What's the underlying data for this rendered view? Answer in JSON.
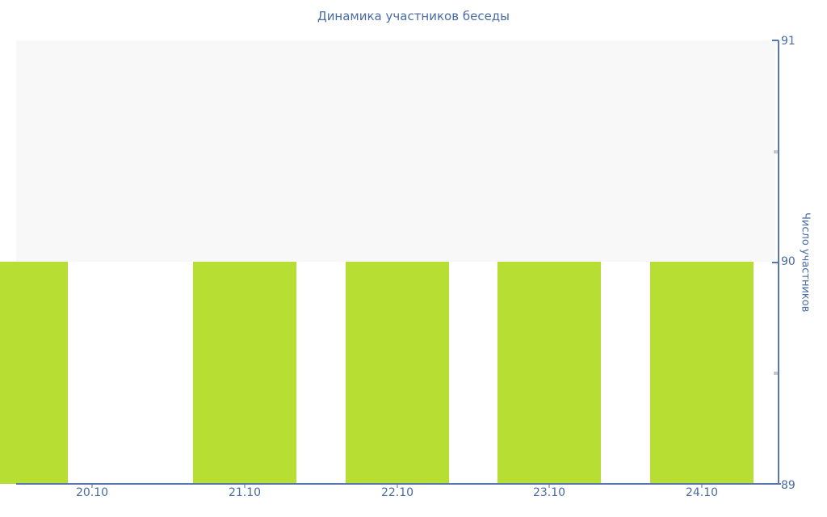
{
  "chart_data": {
    "type": "bar",
    "title": "Динамика участников беседы",
    "categories": [
      "20.10",
      "21.10",
      "22.10",
      "23.10",
      "24.10"
    ],
    "values": [
      90,
      90,
      90,
      90,
      90
    ],
    "xlabel": "",
    "ylabel": "Число участников",
    "ylim": [
      89,
      91
    ],
    "y_major_ticks": [
      89,
      90,
      91
    ],
    "y_minor_ticks": [
      89.5,
      90.5
    ],
    "grid": "off",
    "legend_position": "none",
    "axis_side": "right",
    "colors": {
      "bar": "#b6de33",
      "axis_line": "#5a76b0",
      "text": "#4a6ba5",
      "upper_band_fill": "#f8f8f8",
      "minor_tick": "#c6c6c6",
      "background": "#ffffff"
    }
  }
}
